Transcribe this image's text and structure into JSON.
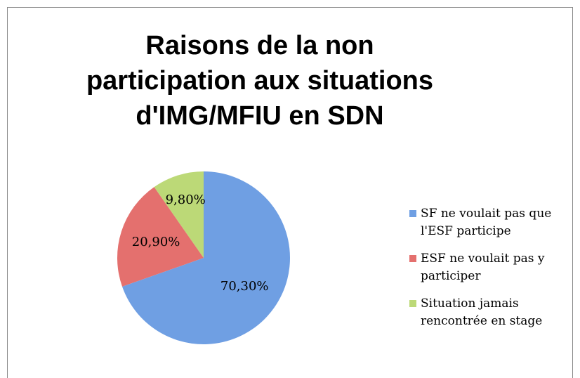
{
  "chart_data": {
    "type": "pie",
    "title": "Raisons de la non participation aux situations d'IMG/MFIU en SDN",
    "categories": [
      "SF ne voulait pas que l'ESF participe",
      "ESF ne voulait pas y participer",
      "Situation jamais rencontrée en stage"
    ],
    "values": [
      70.3,
      20.9,
      9.8
    ],
    "value_labels": [
      "70,30%",
      "20,90%",
      "9,80%"
    ],
    "colors": [
      "#6f9fe3",
      "#e4706e",
      "#bcd977"
    ],
    "legend": "right"
  }
}
